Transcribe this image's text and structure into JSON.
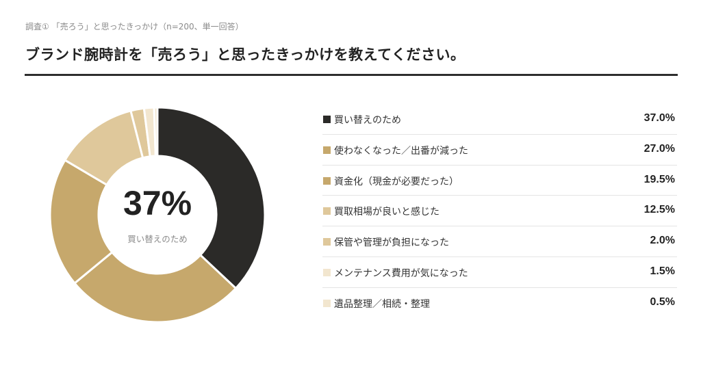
{
  "header": {
    "survey_label": "調査① 「売ろう」と思ったきっかけ（n=200、単一回答）",
    "title": "ブランド腕時計を「売ろう」と思ったきっかけを教えてください。"
  },
  "chart_data": {
    "type": "pie",
    "categories": [
      "買い替えのため",
      "使わなくなった／出番が減った",
      "資金化（現金が必要だった）",
      "買取相場が良いと感じた",
      "保管や管理が負担になった",
      "メンテナンス費用が気になった",
      "遺品整理／相続・整理"
    ],
    "values": [
      37.0,
      27.0,
      19.5,
      12.5,
      2.0,
      1.5,
      0.5
    ],
    "value_labels": [
      "37.0%",
      "27.0%",
      "19.5%",
      "12.5%",
      "2.0%",
      "1.5%",
      "0.5%"
    ],
    "colors": [
      "#2b2a28",
      "#c6a86c",
      "#c6a86c",
      "#dfc89b",
      "#dfc89b",
      "#f2e6cf",
      "#f2e6cf"
    ],
    "center": {
      "value": "37%",
      "label": "買い替えのため"
    },
    "legend_position": "right"
  }
}
